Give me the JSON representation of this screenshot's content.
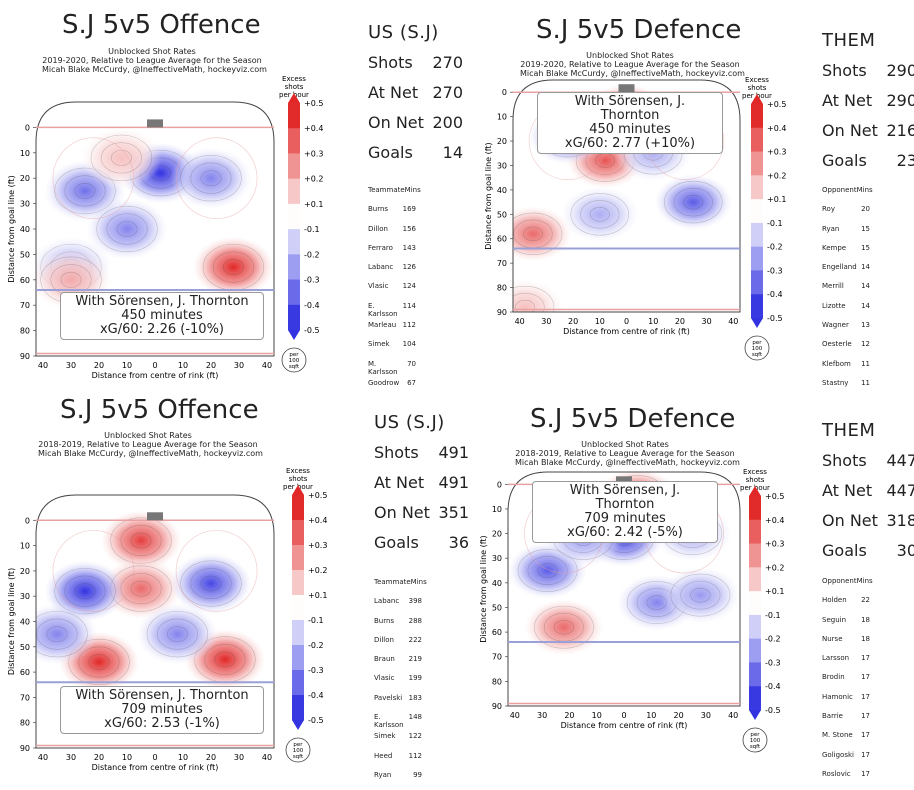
{
  "panels": [
    {
      "title": "S.J 5v5 Offence",
      "subtitle": [
        "Unblocked Shot Rates",
        "2019-2020, Relative to League Average for the Season",
        "Micah Blake McCurdy, @IneffectiveMath, hockeyviz.com"
      ],
      "overlay": [
        "With Sörensen, J. Thornton",
        "450 minutes",
        "xG/60: 2.26 (-10%)"
      ],
      "stats_header": "US (S.J)",
      "stats": [
        {
          "k": "Shots",
          "v": "270"
        },
        {
          "k": "At Net",
          "v": "270"
        },
        {
          "k": "On Net",
          "v": "200"
        },
        {
          "k": "Goals",
          "v": "14"
        }
      ],
      "table_header": {
        "name": "Teammate",
        "mins": "Mins"
      },
      "table": [
        {
          "n": "Burns",
          "m": "169"
        },
        {
          "n": "Dillon",
          "m": "156"
        },
        {
          "n": "Ferraro",
          "m": "143"
        },
        {
          "n": "Labanc",
          "m": "126"
        },
        {
          "n": "Vlasic",
          "m": "124"
        },
        {
          "n": "E. Karlsson",
          "m": "114"
        },
        {
          "n": "Marleau",
          "m": "112"
        },
        {
          "n": "Simek",
          "m": "104"
        },
        {
          "n": "M. Karlsson",
          "m": "70"
        },
        {
          "n": "Goodrow",
          "m": "67"
        }
      ]
    },
    {
      "title": "S.J 5v5 Defence",
      "subtitle": [
        "Unblocked Shot Rates",
        "2019-2020, Relative to League Average for the Season",
        "Micah Blake McCurdy, @IneffectiveMath, hockeyviz.com"
      ],
      "overlay": [
        "With Sörensen, J. Thornton",
        "450 minutes",
        "xG/60: 2.77 (+10%)"
      ],
      "stats_header": "THEM",
      "stats": [
        {
          "k": "Shots",
          "v": "290"
        },
        {
          "k": "At Net",
          "v": "290"
        },
        {
          "k": "On Net",
          "v": "216"
        },
        {
          "k": "Goals",
          "v": "23"
        }
      ],
      "table_header": {
        "name": "Opponent",
        "mins": "Mins"
      },
      "table": [
        {
          "n": "Roy",
          "m": "20"
        },
        {
          "n": "Ryan",
          "m": "15"
        },
        {
          "n": "Kempe",
          "m": "15"
        },
        {
          "n": "Engelland",
          "m": "14"
        },
        {
          "n": "Merrill",
          "m": "14"
        },
        {
          "n": "Lizotte",
          "m": "14"
        },
        {
          "n": "Wagner",
          "m": "13"
        },
        {
          "n": "Oesterle",
          "m": "12"
        },
        {
          "n": "Klefbom",
          "m": "11"
        },
        {
          "n": "Stastny",
          "m": "11"
        }
      ]
    },
    {
      "title": "S.J 5v5 Offence",
      "subtitle": [
        "Unblocked Shot Rates",
        "2018-2019, Relative to League Average for the Season",
        "Micah Blake McCurdy, @IneffectiveMath, hockeyviz.com"
      ],
      "overlay": [
        "With Sörensen, J. Thornton",
        "709 minutes",
        "xG/60: 2.53 (-1%)"
      ],
      "stats_header": "US (S.J)",
      "stats": [
        {
          "k": "Shots",
          "v": "491"
        },
        {
          "k": "At Net",
          "v": "491"
        },
        {
          "k": "On Net",
          "v": "351"
        },
        {
          "k": "Goals",
          "v": "36"
        }
      ],
      "table_header": {
        "name": "Teammate",
        "mins": "Mins"
      },
      "table": [
        {
          "n": "Labanc",
          "m": "398"
        },
        {
          "n": "Burns",
          "m": "288"
        },
        {
          "n": "Dillon",
          "m": "222"
        },
        {
          "n": "Braun",
          "m": "219"
        },
        {
          "n": "Vlasic",
          "m": "199"
        },
        {
          "n": "Pavelski",
          "m": "183"
        },
        {
          "n": "E. Karlsson",
          "m": "148"
        },
        {
          "n": "Simek",
          "m": "122"
        },
        {
          "n": "Heed",
          "m": "112"
        },
        {
          "n": "Ryan",
          "m": "99"
        }
      ]
    },
    {
      "title": "S.J 5v5 Defence",
      "subtitle": [
        "Unblocked Shot Rates",
        "2018-2019, Relative to League Average for the Season",
        "Micah Blake McCurdy, @IneffectiveMath, hockeyviz.com"
      ],
      "overlay": [
        "With Sörensen, J. Thornton",
        "709 minutes",
        "xG/60: 2.42 (-5%)"
      ],
      "stats_header": "THEM",
      "stats": [
        {
          "k": "Shots",
          "v": "447"
        },
        {
          "k": "At Net",
          "v": "447"
        },
        {
          "k": "On Net",
          "v": "318"
        },
        {
          "k": "Goals",
          "v": "30"
        }
      ],
      "table_header": {
        "name": "Opponent",
        "mins": "Mins"
      },
      "table": [
        {
          "n": "Holden",
          "m": "22"
        },
        {
          "n": "Seguin",
          "m": "18"
        },
        {
          "n": "Nurse",
          "m": "18"
        },
        {
          "n": "Larsson",
          "m": "17"
        },
        {
          "n": "Brodin",
          "m": "17"
        },
        {
          "n": "Hamonic",
          "m": "17"
        },
        {
          "n": "Barrie",
          "m": "17"
        },
        {
          "n": "M. Stone",
          "m": "17"
        },
        {
          "n": "Goligoski",
          "m": "17"
        },
        {
          "n": "Roslovic",
          "m": "17"
        }
      ]
    }
  ],
  "chart_data": [
    {
      "type": "heatmap",
      "ylabel": "Distance from goal line (ft)",
      "xlabel": "Distance from centre of rink (ft)",
      "x_ticks": [
        "40",
        "30",
        "20",
        "10",
        "0",
        "10",
        "20",
        "30",
        "40"
      ],
      "y_ticks": [
        "0",
        "10",
        "20",
        "30",
        "40",
        "50",
        "60",
        "70",
        "80",
        "90"
      ],
      "xlim": [
        -42.5,
        42.5
      ],
      "ylim": [
        -10,
        90
      ],
      "colorbar": {
        "title": [
          "Excess",
          "shots",
          "per hour"
        ],
        "ticks": [
          "+0.5",
          "+0.4",
          "+0.3",
          "+0.2",
          "+0.1",
          "-0.1",
          "-0.2",
          "-0.3",
          "-0.4",
          "-0.5"
        ],
        "unit": [
          "per",
          "100",
          "sqft"
        ]
      },
      "blobs": [
        {
          "x": -25,
          "y": 25,
          "v": -0.35
        },
        {
          "x": 2,
          "y": 18,
          "v": -0.5
        },
        {
          "x": -10,
          "y": 40,
          "v": -0.3
        },
        {
          "x": 28,
          "y": 55,
          "v": 0.5
        },
        {
          "x": -30,
          "y": 55,
          "v": -0.2
        },
        {
          "x": -30,
          "y": 60,
          "v": 0.2
        },
        {
          "x": 20,
          "y": 20,
          "v": -0.3
        },
        {
          "x": -12,
          "y": 12,
          "v": 0.15
        }
      ]
    },
    {
      "type": "heatmap",
      "ylabel": "Distance from goal line (ft)",
      "xlabel": "Distance from centre of rink (ft)",
      "x_ticks": [
        "40",
        "30",
        "20",
        "10",
        "0",
        "10",
        "20",
        "30",
        "40"
      ],
      "y_ticks": [
        "0",
        "10",
        "20",
        "30",
        "40",
        "50",
        "60",
        "70",
        "80",
        "90"
      ],
      "xlim": [
        -42.5,
        42.5
      ],
      "ylim": [
        -5,
        90
      ],
      "colorbar": {
        "title": [
          "Excess",
          "shots",
          "per hour"
        ],
        "ticks": [
          "+0.5",
          "+0.4",
          "+0.3",
          "+0.2",
          "+0.1",
          "-0.1",
          "-0.2",
          "-0.3",
          "-0.4",
          "-0.5"
        ],
        "unit": [
          "per",
          "100",
          "sqft"
        ]
      },
      "blobs": [
        {
          "x": 0,
          "y": 8,
          "v": 0.5
        },
        {
          "x": -8,
          "y": 28,
          "v": 0.4
        },
        {
          "x": -22,
          "y": 18,
          "v": -0.4
        },
        {
          "x": 25,
          "y": 45,
          "v": -0.4
        },
        {
          "x": -35,
          "y": 58,
          "v": 0.35
        },
        {
          "x": -10,
          "y": 50,
          "v": -0.2
        },
        {
          "x": 10,
          "y": 25,
          "v": -0.2
        },
        {
          "x": -38,
          "y": 88,
          "v": 0.15
        }
      ]
    },
    {
      "type": "heatmap",
      "ylabel": "Distance from goal line (ft)",
      "xlabel": "Distance from centre of rink (ft)",
      "x_ticks": [
        "40",
        "30",
        "20",
        "10",
        "0",
        "10",
        "20",
        "30",
        "40"
      ],
      "y_ticks": [
        "0",
        "10",
        "20",
        "30",
        "40",
        "50",
        "60",
        "70",
        "80",
        "90"
      ],
      "xlim": [
        -42.5,
        42.5
      ],
      "ylim": [
        -10,
        90
      ],
      "colorbar": {
        "title": [
          "Excess",
          "shots",
          "per hour"
        ],
        "ticks": [
          "+0.5",
          "+0.4",
          "+0.3",
          "+0.2",
          "+0.1",
          "-0.1",
          "-0.2",
          "-0.3",
          "-0.4",
          "-0.5"
        ],
        "unit": [
          "per",
          "100",
          "sqft"
        ]
      },
      "blobs": [
        {
          "x": -5,
          "y": 8,
          "v": 0.45
        },
        {
          "x": -5,
          "y": 27,
          "v": 0.35
        },
        {
          "x": -25,
          "y": 28,
          "v": -0.5
        },
        {
          "x": 20,
          "y": 25,
          "v": -0.45
        },
        {
          "x": -20,
          "y": 56,
          "v": 0.5
        },
        {
          "x": 25,
          "y": 55,
          "v": 0.5
        },
        {
          "x": 8,
          "y": 45,
          "v": -0.3
        },
        {
          "x": -35,
          "y": 45,
          "v": -0.3
        }
      ]
    },
    {
      "type": "heatmap",
      "ylabel": "Distance from goal line (ft)",
      "xlabel": "Distance from centre of rink (ft)",
      "x_ticks": [
        "40",
        "30",
        "20",
        "10",
        "0",
        "10",
        "20",
        "30",
        "40"
      ],
      "y_ticks": [
        "0",
        "10",
        "20",
        "30",
        "40",
        "50",
        "60",
        "70",
        "80",
        "90"
      ],
      "xlim": [
        -42.5,
        42.5
      ],
      "ylim": [
        -5,
        90
      ],
      "colorbar": {
        "title": [
          "Excess",
          "shots",
          "per hour"
        ],
        "ticks": [
          "+0.5",
          "+0.4",
          "+0.3",
          "+0.2",
          "+0.1",
          "-0.1",
          "-0.2",
          "-0.3",
          "-0.4",
          "-0.5"
        ],
        "unit": [
          "per",
          "100",
          "sqft"
        ]
      },
      "blobs": [
        {
          "x": 5,
          "y": 5,
          "v": 0.45
        },
        {
          "x": -28,
          "y": 35,
          "v": -0.4
        },
        {
          "x": 0,
          "y": 22,
          "v": -0.45
        },
        {
          "x": -22,
          "y": 58,
          "v": 0.35
        },
        {
          "x": 12,
          "y": 48,
          "v": -0.3
        },
        {
          "x": 28,
          "y": 45,
          "v": -0.25
        },
        {
          "x": 25,
          "y": 20,
          "v": -0.2
        },
        {
          "x": -15,
          "y": 22,
          "v": -0.25
        }
      ]
    }
  ]
}
